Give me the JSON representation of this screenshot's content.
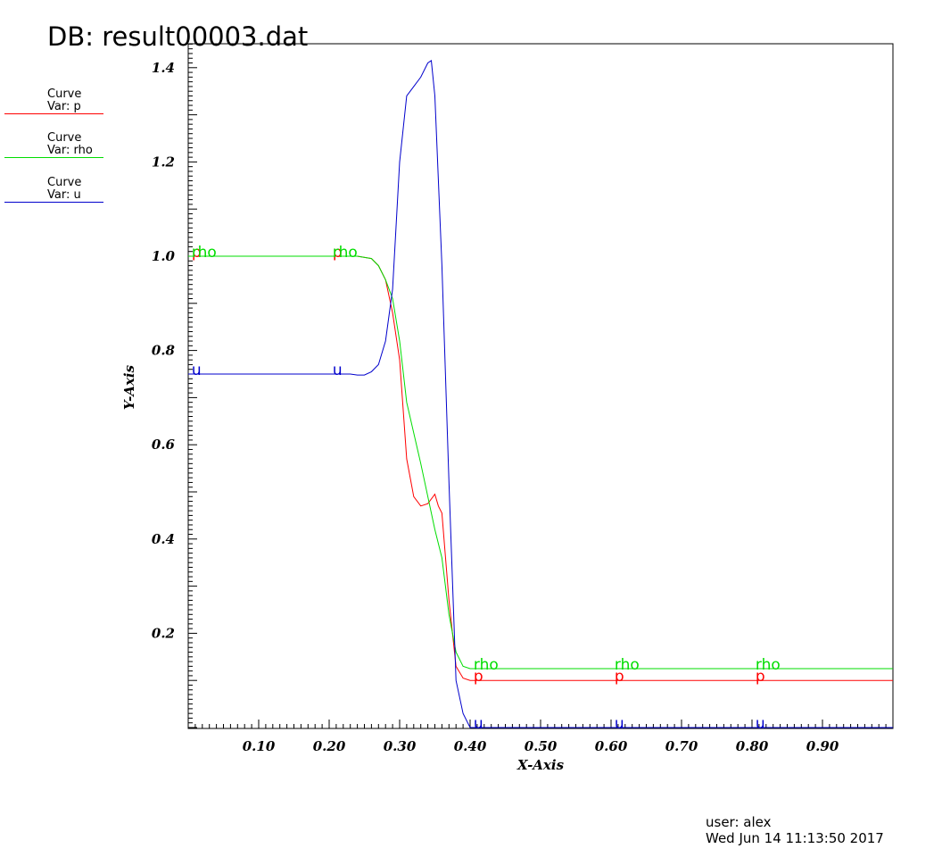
{
  "header": {
    "db_title": "DB: result00003.dat"
  },
  "legend": [
    {
      "line1": "Curve",
      "line2": "Var: p",
      "color": "#ff0000"
    },
    {
      "line1": "Curve",
      "line2": "Var: rho",
      "color": "#00dd00"
    },
    {
      "line1": "Curve",
      "line2": "Var: u",
      "color": "#0000cc"
    }
  ],
  "footer": {
    "user": "user: alex",
    "date": "Wed Jun 14 11:13:50 2017"
  },
  "chart_data": {
    "type": "line",
    "xlabel": "X-Axis",
    "ylabel": "Y-Axis",
    "xlim": [
      0.0,
      1.0
    ],
    "ylim": [
      0.0,
      1.45
    ],
    "xticks": [
      0.1,
      0.2,
      0.3,
      0.4,
      0.5,
      0.6,
      0.7,
      0.8,
      0.9
    ],
    "xtick_labels": [
      "0.10",
      "0.20",
      "0.30",
      "0.40",
      "0.50",
      "0.60",
      "0.70",
      "0.80",
      "0.90"
    ],
    "yticks": [
      0.2,
      0.4,
      0.6,
      0.8,
      1.0,
      1.2,
      1.4
    ],
    "ytick_labels": [
      "0.2",
      "0.4",
      "0.6",
      "0.8",
      "1.0",
      "1.2",
      "1.4"
    ],
    "grid": false,
    "legend_position": "left",
    "series": [
      {
        "name": "p",
        "color": "#ff0000",
        "label_text": "p",
        "label_x": [
          0.01,
          0.21,
          0.41,
          0.61,
          0.81
        ],
        "x": [
          0.0,
          0.24,
          0.26,
          0.27,
          0.28,
          0.29,
          0.3,
          0.31,
          0.32,
          0.33,
          0.34,
          0.35,
          0.355,
          0.36,
          0.37,
          0.38,
          0.39,
          0.4,
          0.42,
          0.5,
          1.0
        ],
        "y": [
          1.0,
          1.0,
          0.995,
          0.98,
          0.95,
          0.88,
          0.78,
          0.57,
          0.49,
          0.47,
          0.475,
          0.495,
          0.47,
          0.455,
          0.27,
          0.13,
          0.105,
          0.1,
          0.1,
          0.1,
          0.1
        ]
      },
      {
        "name": "rho",
        "color": "#00dd00",
        "label_text": "rho",
        "label_x": [
          0.01,
          0.21,
          0.41,
          0.61,
          0.81
        ],
        "x": [
          0.0,
          0.24,
          0.26,
          0.27,
          0.28,
          0.29,
          0.3,
          0.31,
          0.33,
          0.35,
          0.36,
          0.37,
          0.38,
          0.39,
          0.4,
          0.42,
          0.5,
          1.0
        ],
        "y": [
          1.0,
          1.0,
          0.995,
          0.98,
          0.95,
          0.91,
          0.82,
          0.69,
          0.56,
          0.42,
          0.36,
          0.24,
          0.16,
          0.13,
          0.125,
          0.125,
          0.125,
          0.125
        ]
      },
      {
        "name": "u",
        "color": "#0000cc",
        "label_text": "u",
        "label_x": [
          0.01,
          0.21,
          0.41,
          0.61,
          0.81
        ],
        "x": [
          0.0,
          0.23,
          0.24,
          0.25,
          0.26,
          0.27,
          0.28,
          0.29,
          0.3,
          0.31,
          0.32,
          0.33,
          0.34,
          0.345,
          0.35,
          0.36,
          0.37,
          0.38,
          0.39,
          0.4,
          0.41,
          0.5,
          1.0
        ],
        "y": [
          0.75,
          0.75,
          0.748,
          0.748,
          0.755,
          0.77,
          0.82,
          0.93,
          1.2,
          1.34,
          1.36,
          1.38,
          1.41,
          1.415,
          1.34,
          0.98,
          0.52,
          0.1,
          0.03,
          0.0,
          0.0,
          0.0,
          0.0
        ]
      }
    ]
  }
}
